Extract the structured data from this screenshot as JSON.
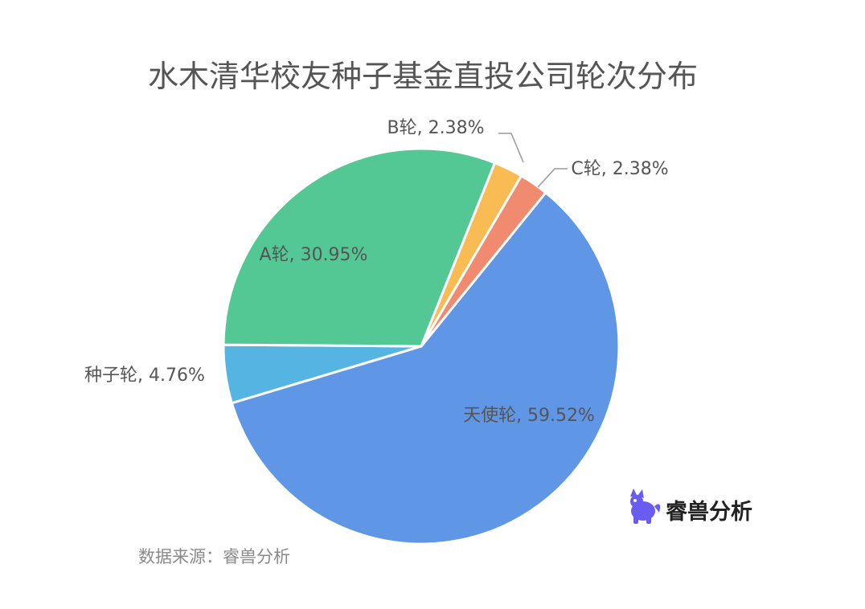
{
  "chart_data": {
    "type": "pie",
    "title": "水木清华校友种子基金直投公司轮次分布",
    "start_angle_deg": 39,
    "slices": [
      {
        "name": "天使轮",
        "value": 59.52,
        "label": "天使轮, 59.52%",
        "color": "#6096E6"
      },
      {
        "name": "种子轮",
        "value": 4.76,
        "label": "种子轮, 4.76%",
        "color": "#56B4E3"
      },
      {
        "name": "A轮",
        "value": 30.95,
        "label": "A轮, 30.95%",
        "color": "#54C894"
      },
      {
        "name": "B轮",
        "value": 2.38,
        "label": "B轮, 2.38%",
        "color": "#F9BC55"
      },
      {
        "name": "C轮",
        "value": 2.38,
        "label": "C轮, 2.38%",
        "color": "#F08B70"
      }
    ],
    "leader_line_color": "#999999"
  },
  "footer": {
    "source": "数据来源：睿兽分析"
  },
  "watermark": {
    "text": "睿兽分析",
    "icon": "beast-logo-icon",
    "icon_color": "#6A5CF0"
  }
}
